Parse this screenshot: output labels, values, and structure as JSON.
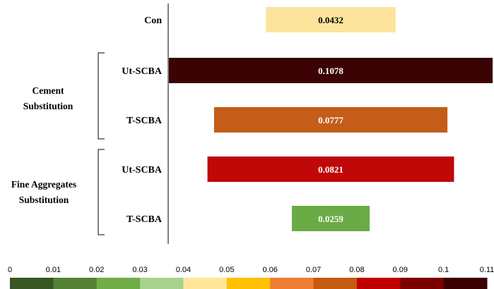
{
  "chart_data": {
    "type": "bar",
    "layout": "centered-horizontal",
    "rows": [
      {
        "label": "Con",
        "value": 0.0432,
        "value_label": "0.0432",
        "color": "#FCE49C",
        "label_color": "#000000"
      },
      {
        "label": "Ut-SCBA",
        "value": 0.1078,
        "value_label": "0.1078",
        "color": "#3B0303",
        "label_color": "#ffffff"
      },
      {
        "label": "T-SCBA",
        "value": 0.0777,
        "value_label": "0.0777",
        "color": "#C35D18",
        "label_color": "#ffffff"
      },
      {
        "label": "Ut-SCBA",
        "value": 0.0821,
        "value_label": "0.0821",
        "color": "#C00808",
        "label_color": "#ffffff"
      },
      {
        "label": "T-SCBA",
        "value": 0.0259,
        "value_label": "0.0259",
        "color": "#6BAB45",
        "label_color": "#ffffff"
      }
    ],
    "groups": [
      {
        "lines": [
          "Cement",
          "Substitution"
        ],
        "rows": [
          1,
          2
        ]
      },
      {
        "lines": [
          "Fine Aggregates",
          "Substitution"
        ],
        "rows": [
          3,
          4
        ]
      }
    ],
    "color_scale": {
      "ticks": [
        "0",
        "0.01",
        "0.02",
        "0.03",
        "0.04",
        "0.05",
        "0.06",
        "0.07",
        "0.08",
        "0.09",
        "0.1",
        "0.11"
      ],
      "colors": [
        "#375623",
        "#548235",
        "#70AD47",
        "#A9D18E",
        "#FFE699",
        "#FFC000",
        "#ED7D31",
        "#C55A11",
        "#C00000",
        "#7B0000",
        "#3B0000"
      ],
      "range": [
        0,
        0.11
      ]
    }
  }
}
